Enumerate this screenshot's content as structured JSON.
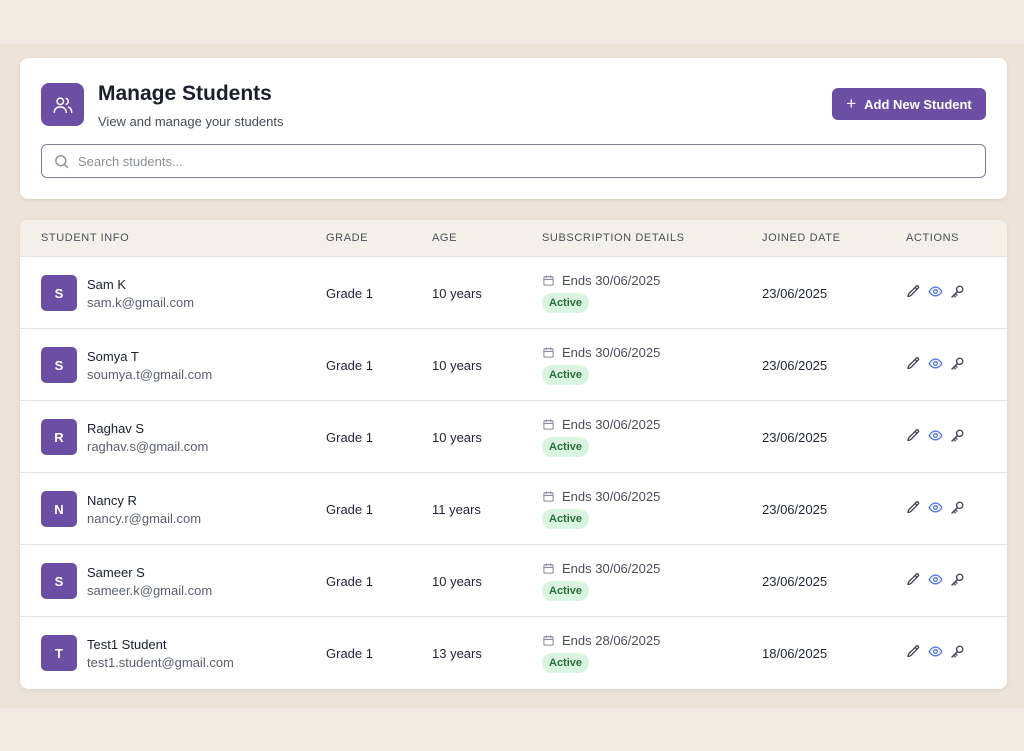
{
  "header": {
    "title": "Manage Students",
    "subtitle": "View and manage your students",
    "add_button_label": "Add New Student",
    "icon": "users-icon"
  },
  "search": {
    "placeholder": "Search students...",
    "value": ""
  },
  "table": {
    "columns": [
      "STUDENT INFO",
      "GRADE",
      "AGE",
      "SUBSCRIPTION DETAILS",
      "JOINED DATE",
      "ACTIONS"
    ],
    "rows": [
      {
        "initial": "S",
        "name": "Sam K",
        "email": "sam.k@gmail.com",
        "grade": "Grade 1",
        "age": "10 years",
        "subscription": "Ends 30/06/2025",
        "status": "Active",
        "joined": "23/06/2025"
      },
      {
        "initial": "S",
        "name": "Somya T",
        "email": "soumya.t@gmail.com",
        "grade": "Grade 1",
        "age": "10 years",
        "subscription": "Ends 30/06/2025",
        "status": "Active",
        "joined": "23/06/2025"
      },
      {
        "initial": "R",
        "name": "Raghav S",
        "email": "raghav.s@gmail.com",
        "grade": "Grade 1",
        "age": "10 years",
        "subscription": "Ends 30/06/2025",
        "status": "Active",
        "joined": "23/06/2025"
      },
      {
        "initial": "N",
        "name": "Nancy R",
        "email": "nancy.r@gmail.com",
        "grade": "Grade 1",
        "age": "11 years",
        "subscription": "Ends 30/06/2025",
        "status": "Active",
        "joined": "23/06/2025"
      },
      {
        "initial": "S",
        "name": "Sameer S",
        "email": "sameer.k@gmail.com",
        "grade": "Grade 1",
        "age": "10 years",
        "subscription": "Ends 30/06/2025",
        "status": "Active",
        "joined": "23/06/2025"
      },
      {
        "initial": "T",
        "name": "Test1 Student",
        "email": "test1.student@gmail.com",
        "grade": "Grade 1",
        "age": "13 years",
        "subscription": "Ends 28/06/2025",
        "status": "Active",
        "joined": "18/06/2025"
      }
    ],
    "action_icons": [
      "pencil-icon",
      "eye-icon",
      "key-icon"
    ]
  },
  "colors": {
    "accent": "#6b4fa5",
    "background": "#ece4d9",
    "active_badge_bg": "#d9f5e0",
    "active_badge_text": "#2b6e3f",
    "eye_icon": "#4a6fd8"
  }
}
